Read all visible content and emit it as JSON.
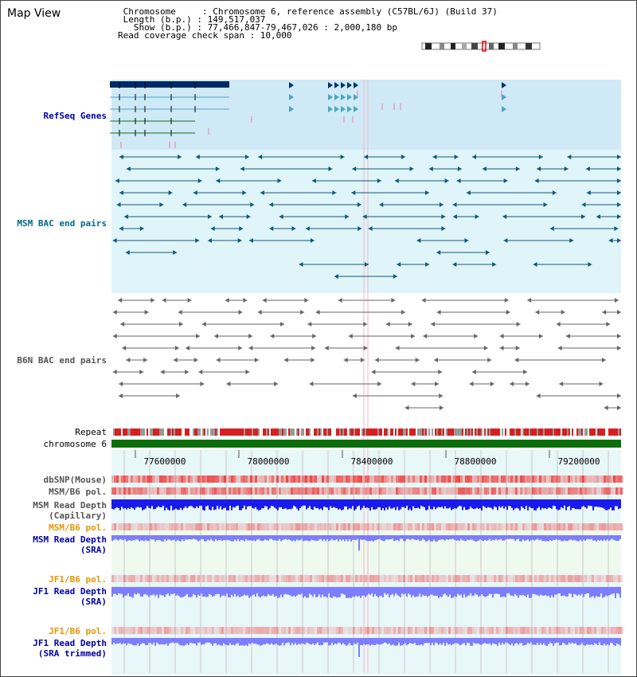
{
  "header": {
    "title": "Map View",
    "info_lines": [
      " Chromosome     : Chromosome 6, reference assembly (C57BL/6J) (Build 37)",
      " Length (b.p.) : 149,517,037",
      "   Show (b.p.) : 77,466,847-79,467,026 : 2,000,180 bp",
      "Read coverage check span : 10,000"
    ]
  },
  "tracks": {
    "refseq": "RefSeq Genes",
    "msm_bac": "MSM BAC end pairs",
    "b6n_bac": "B6N BAC end pairs",
    "repeat": "Repeat",
    "chromosome": "chromosome 6",
    "dbsnp": "dbSNP(Mouse)",
    "msm_b6_pol_1": "MSM/B6 pol.",
    "msm_read_depth_cap": "MSM Read Depth\n(Capillary)",
    "msm_b6_pol_2": "MSM/B6 pol.",
    "msm_read_depth_sra": "MSM Read Depth\n(SRA)",
    "jf1_b6_pol_1": "JF1/B6 pol.",
    "jf1_read_depth_sra": "JF1 Read Depth\n(SRA)",
    "jf1_b6_pol_2": "JF1/B6 pol.",
    "jf1_read_depth_trim": "JF1 Read Depth\n(SRA trimmed)"
  },
  "axis": {
    "ticks": [
      "77600000",
      "78000000",
      "78400000",
      "78800000",
      "79200000"
    ]
  },
  "colors": {
    "refseq_bg": "#cfe9f7",
    "msm_bg": "#e0f5fa",
    "chromosome": "#0a6e0a",
    "repeat": "#d62020",
    "read_depth_capillary": "#1a1aee",
    "read_depth_sra": "#7d7dff",
    "pol_red": "#ee3333"
  }
}
